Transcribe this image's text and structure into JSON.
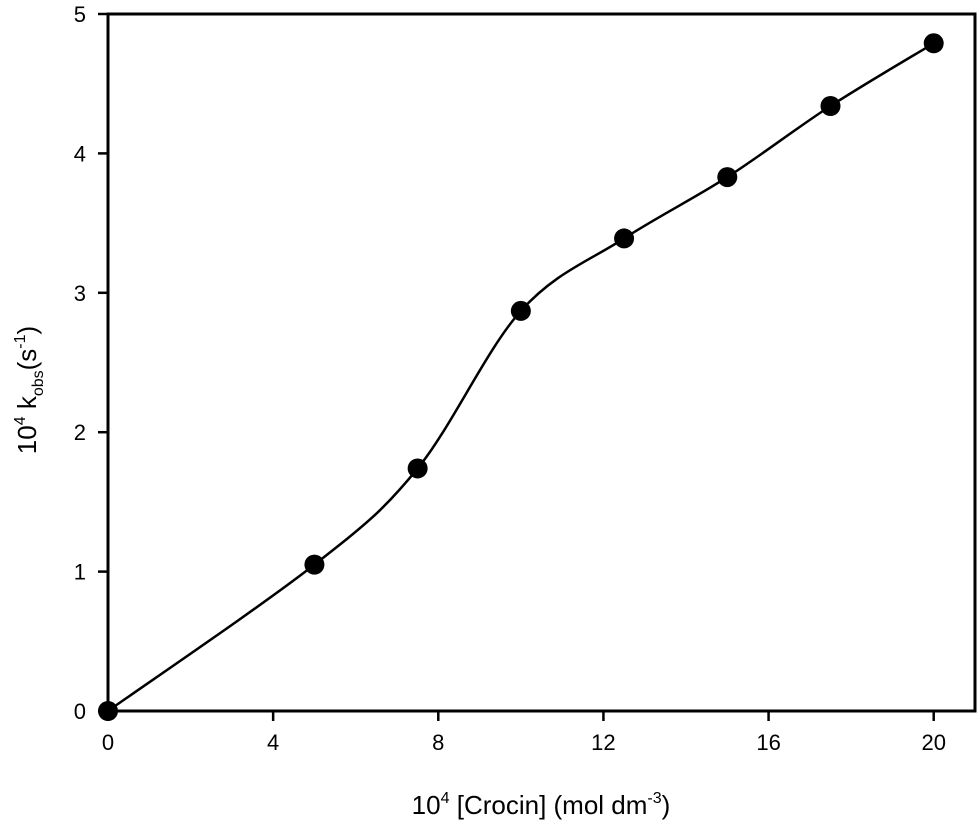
{
  "chart_data": {
    "type": "scatter",
    "title": "",
    "xlabel": {
      "prefix": "10",
      "prefix_sup": "4",
      "main": " [Crocin] (mol dm",
      "main_sup": "-3",
      "suffix": ")"
    },
    "ylabel": {
      "prefix": "10",
      "prefix_sup": "4",
      "main": " k",
      "main_sub": "obs",
      "paren": "(s",
      "paren_sup": "-1",
      "suffix": ")"
    },
    "xlim": [
      0,
      21
    ],
    "ylim": [
      0,
      5
    ],
    "xticks": [
      0,
      4,
      8,
      12,
      16,
      20
    ],
    "yticks": [
      0,
      1,
      2,
      3,
      4,
      5
    ],
    "grid": false,
    "series": [
      {
        "x": [
          0,
          5,
          7.5,
          10,
          12.5,
          15,
          17.5,
          20
        ],
        "y": [
          0,
          1.05,
          1.74,
          2.87,
          3.39,
          3.83,
          4.34,
          4.79
        ],
        "marker": "filled-circle",
        "line": "smooth",
        "color": "#000000"
      }
    ]
  }
}
